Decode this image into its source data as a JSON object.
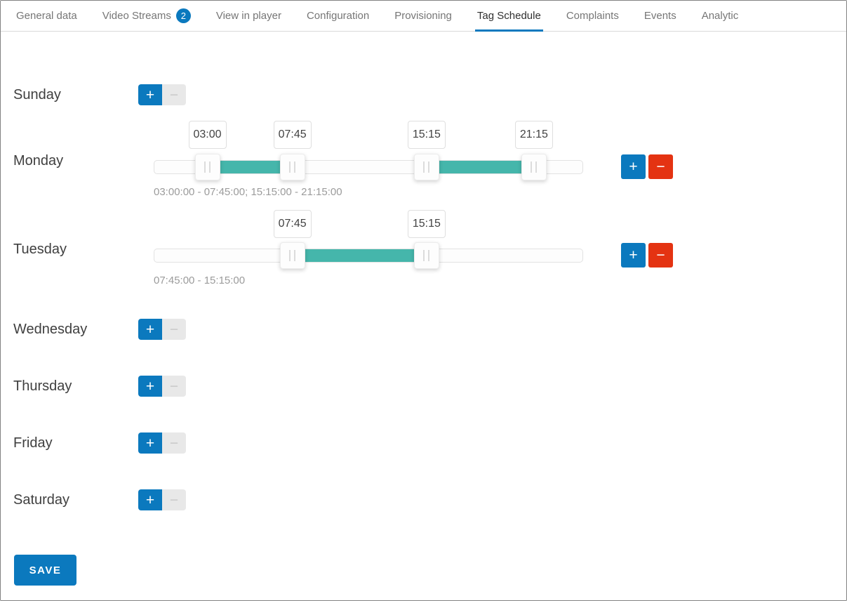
{
  "tabs": [
    {
      "label": "General data"
    },
    {
      "label": "Video Streams",
      "badge": "2"
    },
    {
      "label": "View in player"
    },
    {
      "label": "Configuration"
    },
    {
      "label": "Provisioning"
    },
    {
      "label": "Tag Schedule",
      "active": true
    },
    {
      "label": "Complaints"
    },
    {
      "label": "Events"
    },
    {
      "label": "Analytic"
    }
  ],
  "schedule": {
    "add_label": "+",
    "remove_label": "−",
    "days": [
      {
        "label": "Sunday",
        "ranges": [],
        "summary": ""
      },
      {
        "label": "Monday",
        "ranges": [
          {
            "start": "03:00",
            "end": "07:45"
          },
          {
            "start": "15:15",
            "end": "21:15"
          }
        ],
        "summary": "03:00:00 - 07:45:00; 15:15:00 - 21:15:00"
      },
      {
        "label": "Tuesday",
        "ranges": [
          {
            "start": "07:45",
            "end": "15:15"
          }
        ],
        "summary": "07:45:00 - 15:15:00"
      },
      {
        "label": "Wednesday",
        "ranges": [],
        "summary": ""
      },
      {
        "label": "Thursday",
        "ranges": [],
        "summary": ""
      },
      {
        "label": "Friday",
        "ranges": [],
        "summary": ""
      },
      {
        "label": "Saturday",
        "ranges": [],
        "summary": ""
      }
    ]
  },
  "save_button": "SAVE",
  "colors": {
    "accent_blue": "#0b79be",
    "danger_red": "#e43312",
    "range_teal": "#45b6ab",
    "tab_inactive": "#767676",
    "tab_active": "#2f2f2f",
    "summary_gray": "#9b9b9b"
  }
}
